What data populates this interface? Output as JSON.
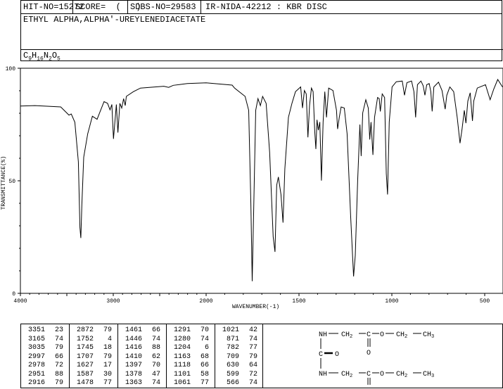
{
  "header": {
    "hit_no": "HIT-NO=15272",
    "score": "SCORE=  (   )",
    "sdbs_no": "SDBS-NO=29583",
    "method": "IR-NIDA-42212 : KBR DISC",
    "compound_name": "ETHYL ALPHA,ALPHA'-UREYLENEDIACETATE",
    "formula": {
      "c": "C",
      "c_n": "9",
      "h": "H",
      "h_n": "16",
      "n": "N",
      "n_n": "2",
      "o": "O",
      "o_n": "5"
    }
  },
  "chart_data": {
    "type": "line",
    "title": "",
    "xlabel": "WAVENUMBER(-1)",
    "ylabel": "TRANSMITTANCE(%)",
    "xlim": [
      4000,
      400
    ],
    "x_scale_note": "scale doubles below 2000",
    "ylim": [
      0,
      100
    ],
    "x_ticks": [
      "4000",
      "3000",
      "2000",
      "1500",
      "1000",
      "500"
    ],
    "y_ticks": [
      "0",
      "50",
      "100"
    ],
    "grid": false,
    "line_color": "#000000",
    "series": [
      {
        "x": [
          4000,
          3843,
          3566,
          3477,
          3452,
          3414,
          3376,
          3359,
          3349,
          3338,
          3318,
          3275,
          3225,
          3174,
          3136,
          3099,
          3061,
          3035,
          3015,
          2998,
          2985,
          2967,
          2950,
          2929,
          2909,
          2889,
          2871,
          2859,
          2783,
          2707,
          2455,
          2404,
          2354,
          2202,
          2000,
          1860,
          1847,
          1790,
          1771,
          1759,
          1752,
          1746,
          1733,
          1721,
          1708,
          1696,
          1677,
          1658,
          1639,
          1629,
          1620,
          1611,
          1597,
          1586,
          1576,
          1557,
          1538,
          1519,
          1491,
          1481,
          1471,
          1461,
          1452,
          1443,
          1433,
          1424,
          1415,
          1409,
          1403,
          1396,
          1388,
          1379,
          1370,
          1361,
          1352,
          1340,
          1317,
          1298,
          1292,
          1283,
          1273,
          1256,
          1241,
          1222,
          1206,
          1197,
          1184,
          1172,
          1165,
          1157,
          1140,
          1127,
          1119,
          1112,
          1102,
          1093,
          1077,
          1068,
          1062,
          1052,
          1039,
          1030,
          1023,
          1014,
          999,
          976,
          944,
          932,
          919,
          894,
          881,
          872,
          862,
          843,
          831,
          822,
          812,
          799,
          790,
          783,
          774,
          749,
          730,
          713,
          704,
          688,
          667,
          648,
          633,
          622,
          610,
          601,
          591,
          578,
          566,
          559,
          540,
          496,
          471,
          452,
          430,
          404
        ],
        "y": [
          83.2,
          83.4,
          82.8,
          79.2,
          79.7,
          76,
          58.4,
          29.3,
          24.6,
          39.7,
          60.5,
          70.9,
          78.7,
          77.3,
          81.3,
          85.2,
          84.4,
          81.5,
          83.9,
          68.6,
          75,
          83.9,
          71.4,
          84.4,
          82.3,
          86.5,
          83.4,
          87.5,
          89.6,
          91.2,
          92,
          91.5,
          92.4,
          93.2,
          93.5,
          92.5,
          91.2,
          87.5,
          81.3,
          39.7,
          5.4,
          29.3,
          81.3,
          86.5,
          83.4,
          87.5,
          84.4,
          62.6,
          25.2,
          18.4,
          48,
          51.7,
          43.9,
          31.4,
          55.3,
          78.2,
          84.4,
          89.6,
          91.7,
          82.3,
          90.1,
          88.6,
          69.3,
          83.4,
          91.2,
          89.6,
          71.9,
          64.1,
          77.1,
          72.5,
          76.1,
          50.1,
          76.1,
          89.6,
          78.2,
          91.2,
          90.1,
          81.3,
          73,
          78.2,
          82.8,
          82.3,
          70.9,
          34.5,
          7.5,
          16.8,
          50.1,
          75,
          61,
          80.2,
          86,
          82.3,
          68.3,
          76.1,
          61.5,
          78.2,
          87,
          86.5,
          80.8,
          88.6,
          87,
          53.2,
          43.9,
          76.1,
          91.7,
          94,
          94.3,
          88,
          93.6,
          94.3,
          89.6,
          78.2,
          92.7,
          94.3,
          92.2,
          88,
          92.7,
          93.2,
          89.6,
          80.8,
          91.7,
          93.8,
          90.1,
          81.8,
          88,
          91.7,
          89.6,
          78.2,
          66.7,
          73,
          81.3,
          75.6,
          85.4,
          89.1,
          76.6,
          85.4,
          91.2,
          92.7,
          86,
          90.6,
          95,
          91.7
        ]
      }
    ]
  },
  "peak_table": [
    [
      [
        "3351",
        "23"
      ],
      [
        "3165",
        "74"
      ],
      [
        "3035",
        "79"
      ],
      [
        "2997",
        "66"
      ],
      [
        "2978",
        "72"
      ],
      [
        "2951",
        "88"
      ],
      [
        "2916",
        "79"
      ]
    ],
    [
      [
        "2872",
        "79"
      ],
      [
        "1752",
        "4"
      ],
      [
        "1745",
        "18"
      ],
      [
        "1707",
        "79"
      ],
      [
        "1627",
        "17"
      ],
      [
        "1587",
        "30"
      ],
      [
        "1478",
        "77"
      ]
    ],
    [
      [
        "1461",
        "66"
      ],
      [
        "1446",
        "74"
      ],
      [
        "1416",
        "88"
      ],
      [
        "1410",
        "62"
      ],
      [
        "1397",
        "70"
      ],
      [
        "1378",
        "47"
      ],
      [
        "1363",
        "74"
      ]
    ],
    [
      [
        "1291",
        "70"
      ],
      [
        "1280",
        "74"
      ],
      [
        "1204",
        "6"
      ],
      [
        "1163",
        "68"
      ],
      [
        "1118",
        "66"
      ],
      [
        "1101",
        "58"
      ],
      [
        "1061",
        "77"
      ]
    ],
    [
      [
        "1021",
        "42"
      ],
      [
        "871",
        "74"
      ],
      [
        "782",
        "77"
      ],
      [
        "709",
        "79"
      ],
      [
        "630",
        "64"
      ],
      [
        "599",
        "72"
      ],
      [
        "566",
        "74"
      ]
    ]
  ],
  "structure": {
    "nh": "NH",
    "ch2": "CH",
    "c": "C",
    "o": "O",
    "ch3": "CH",
    "sub2": "2",
    "sub3": "3"
  }
}
